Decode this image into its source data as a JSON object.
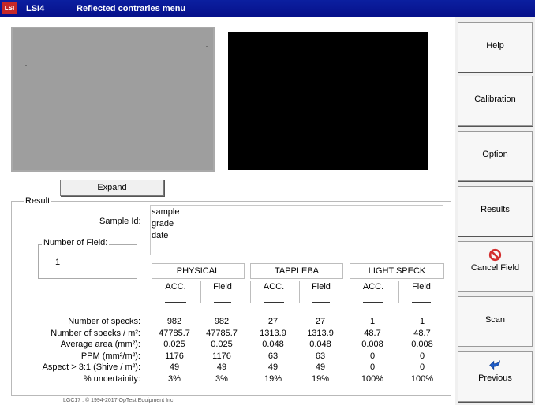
{
  "window": {
    "logo_text": "LSI",
    "app": "LSI4",
    "title": "Reflected contraries menu"
  },
  "expand_label": "Expand",
  "result": {
    "legend": "Result",
    "sample_label": "Sample Id:",
    "sample_lines": [
      "sample",
      "grade",
      "date"
    ],
    "field_legend": "Number of Field:",
    "field_value": "1"
  },
  "table": {
    "groups": [
      "PHYSICAL",
      "TAPPI EBA",
      "LIGHT SPECK"
    ],
    "sub_headers": [
      "ACC.",
      "Field",
      "ACC.",
      "Field",
      "ACC.",
      "Field"
    ],
    "rows": [
      {
        "label": "Number of specks:",
        "values": [
          "982",
          "982",
          "27",
          "27",
          "1",
          "1"
        ]
      },
      {
        "label": "Number of specks / m²:",
        "values": [
          "47785.7",
          "47785.7",
          "1313.9",
          "1313.9",
          "48.7",
          "48.7"
        ]
      },
      {
        "label": "Average area (mm²):",
        "values": [
          "0.025",
          "0.025",
          "0.048",
          "0.048",
          "0.008",
          "0.008"
        ]
      },
      {
        "label": "PPM (mm²/m²):",
        "values": [
          "1176",
          "1176",
          "63",
          "63",
          "0",
          "0"
        ]
      },
      {
        "label": "Aspect > 3:1 (Shive / m²):",
        "values": [
          "49",
          "49",
          "49",
          "49",
          "0",
          "0"
        ]
      },
      {
        "label": "% uncertainity:",
        "values": [
          "3%",
          "3%",
          "19%",
          "19%",
          "100%",
          "100%"
        ]
      }
    ]
  },
  "footer": "LGC17 : © 1994-2017 OpTest Equipment Inc.",
  "sidebar": {
    "help": "Help",
    "calibration": "Calibration",
    "option": "Option",
    "results": "Results",
    "cancel_field": "Cancel Field",
    "scan": "Scan",
    "previous": "Previous"
  },
  "colors": {
    "titlebar": "#0b1fa0",
    "cancel_icon": "#d32f2f",
    "previous_icon": "#1e5cc8"
  }
}
